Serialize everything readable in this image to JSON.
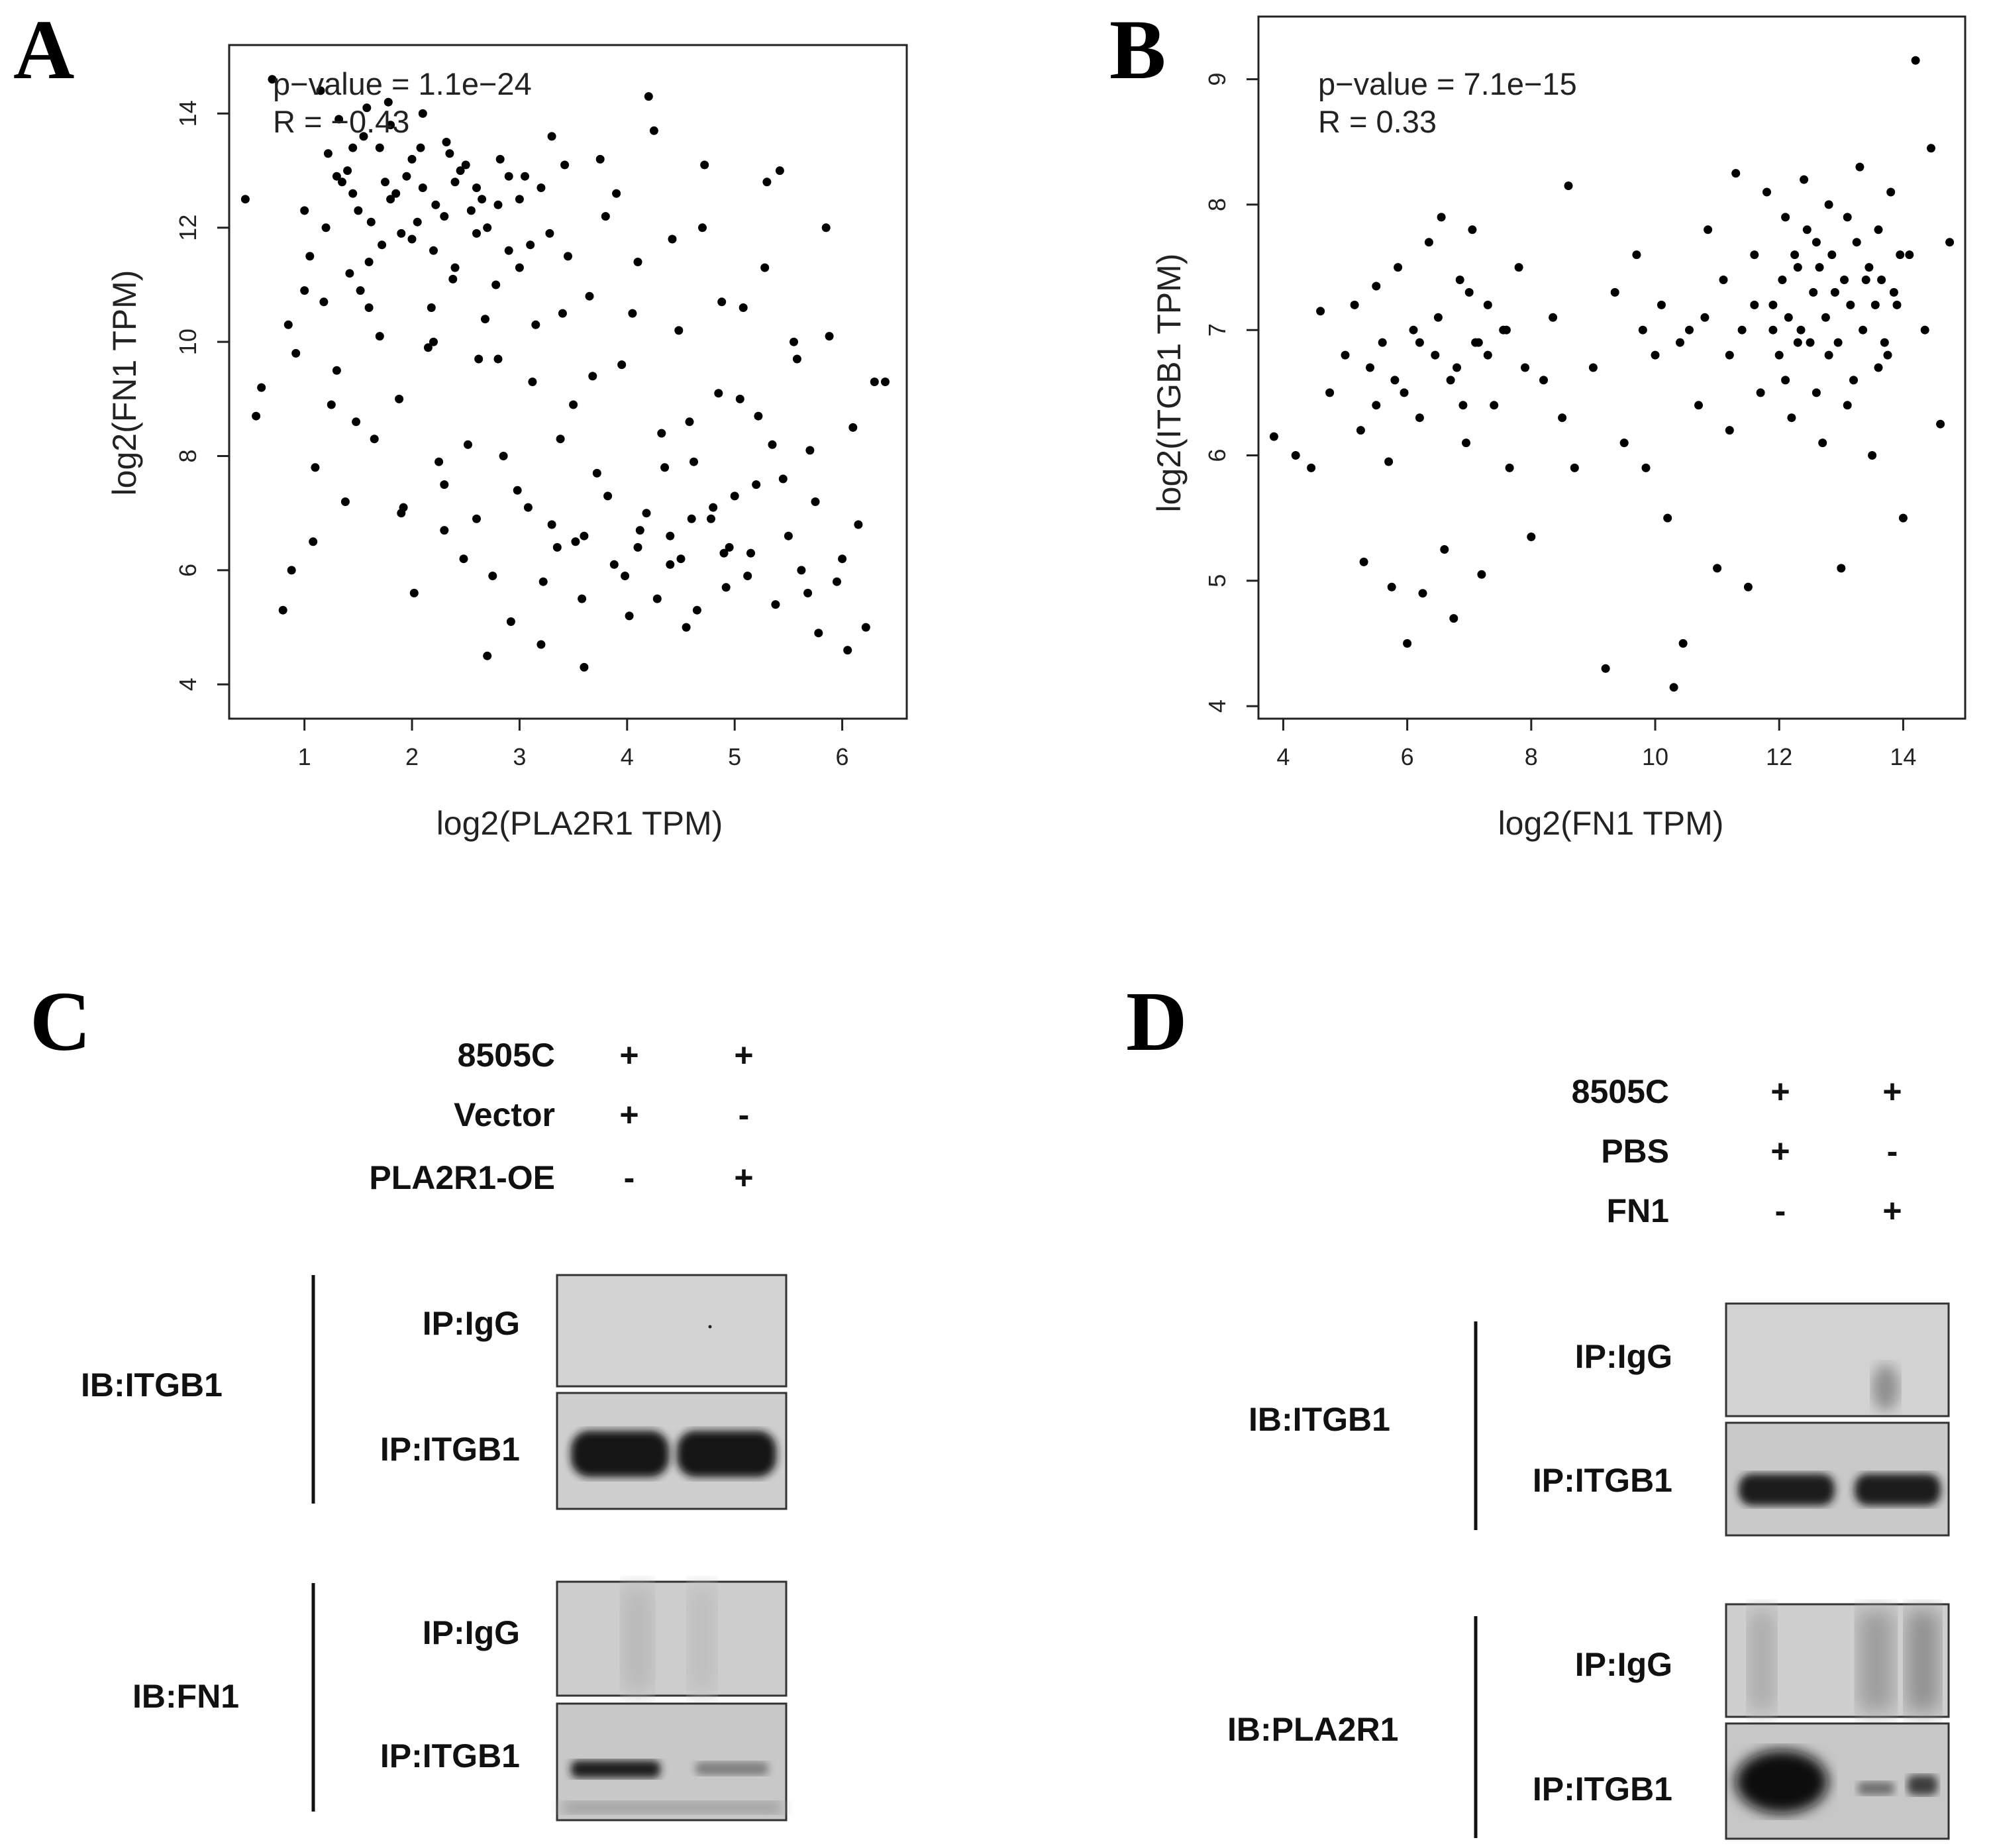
{
  "figure": {
    "panels": {
      "A": "A",
      "B": "B",
      "C": "C",
      "D": "D"
    }
  },
  "chart_data": [
    {
      "type": "scatter",
      "panel": "A",
      "stat_p": "p−value = 1.1e−24",
      "stat_r": "R = −0.43",
      "xlabel": "log2(PLA2R1 TPM)",
      "ylabel": "log2(FN1 TPM)",
      "xlim": [
        0.3,
        6.6
      ],
      "ylim": [
        3.4,
        15.2
      ],
      "xticks": [
        1,
        2,
        3,
        4,
        5,
        6
      ],
      "yticks": [
        4,
        6,
        8,
        10,
        12,
        14
      ],
      "points": [
        [
          0.85,
          10.3
        ],
        [
          0.92,
          9.8
        ],
        [
          1.0,
          12.3
        ],
        [
          1.05,
          11.5
        ],
        [
          1.1,
          7.8
        ],
        [
          1.18,
          10.7
        ],
        [
          1.22,
          13.3
        ],
        [
          1.3,
          9.5
        ],
        [
          1.35,
          12.8
        ],
        [
          1.42,
          11.2
        ],
        [
          1.48,
          8.6
        ],
        [
          1.55,
          13.6
        ],
        [
          1.62,
          12.1
        ],
        [
          1.7,
          10.1
        ],
        [
          1.78,
          14.2
        ],
        [
          1.85,
          12.6
        ],
        [
          1.92,
          7.1
        ],
        [
          2.0,
          11.8
        ],
        [
          2.08,
          13.4
        ],
        [
          2.15,
          9.9
        ],
        [
          2.22,
          12.4
        ],
        [
          2.3,
          6.7
        ],
        [
          2.38,
          11.1
        ],
        [
          2.45,
          13.0
        ],
        [
          2.52,
          8.2
        ],
        [
          2.6,
          12.7
        ],
        [
          2.68,
          10.4
        ],
        [
          2.75,
          5.9
        ],
        [
          2.82,
          13.2
        ],
        [
          2.9,
          11.6
        ],
        [
          2.98,
          7.4
        ],
        [
          3.05,
          12.9
        ],
        [
          3.12,
          9.3
        ],
        [
          3.2,
          4.7
        ],
        [
          3.28,
          11.9
        ],
        [
          3.35,
          6.4
        ],
        [
          3.42,
          13.1
        ],
        [
          3.5,
          8.9
        ],
        [
          3.58,
          5.5
        ],
        [
          3.65,
          10.8
        ],
        [
          3.72,
          7.7
        ],
        [
          3.8,
          12.2
        ],
        [
          3.88,
          6.1
        ],
        [
          3.95,
          9.6
        ],
        [
          4.02,
          5.2
        ],
        [
          4.1,
          11.4
        ],
        [
          4.18,
          7.0
        ],
        [
          4.25,
          13.7
        ],
        [
          4.32,
          8.4
        ],
        [
          4.4,
          6.6
        ],
        [
          4.48,
          10.2
        ],
        [
          4.55,
          5.0
        ],
        [
          4.62,
          7.9
        ],
        [
          4.7,
          12.0
        ],
        [
          4.78,
          6.9
        ],
        [
          4.85,
          9.1
        ],
        [
          4.92,
          5.7
        ],
        [
          5.0,
          7.3
        ],
        [
          5.08,
          10.6
        ],
        [
          5.15,
          6.3
        ],
        [
          5.22,
          8.7
        ],
        [
          5.3,
          12.8
        ],
        [
          5.38,
          5.4
        ],
        [
          5.45,
          7.6
        ],
        [
          5.55,
          10.0
        ],
        [
          5.62,
          6.0
        ],
        [
          5.7,
          8.1
        ],
        [
          5.78,
          4.9
        ],
        [
          5.85,
          12.0
        ],
        [
          5.95,
          5.8
        ],
        [
          6.05,
          4.6
        ],
        [
          6.15,
          6.8
        ],
        [
          6.3,
          9.3
        ],
        [
          0.45,
          12.5
        ],
        [
          0.55,
          8.7
        ],
        [
          0.6,
          9.2
        ],
        [
          0.7,
          14.6
        ],
        [
          0.8,
          5.3
        ],
        [
          0.88,
          6.0
        ],
        [
          1.08,
          6.5
        ],
        [
          1.15,
          14.4
        ],
        [
          1.25,
          8.9
        ],
        [
          1.32,
          13.9
        ],
        [
          1.38,
          7.2
        ],
        [
          1.45,
          12.6
        ],
        [
          1.52,
          10.9
        ],
        [
          1.58,
          14.1
        ],
        [
          1.65,
          8.3
        ],
        [
          1.72,
          11.7
        ],
        [
          1.8,
          13.8
        ],
        [
          1.88,
          9.0
        ],
        [
          1.95,
          12.9
        ],
        [
          2.02,
          5.6
        ],
        [
          2.1,
          14.0
        ],
        [
          2.18,
          10.6
        ],
        [
          2.25,
          7.9
        ],
        [
          2.32,
          13.5
        ],
        [
          2.4,
          11.3
        ],
        [
          2.48,
          6.2
        ],
        [
          2.55,
          12.3
        ],
        [
          2.62,
          9.7
        ],
        [
          2.7,
          4.5
        ],
        [
          2.78,
          11.0
        ],
        [
          2.85,
          8.0
        ],
        [
          2.92,
          5.1
        ],
        [
          3.0,
          12.5
        ],
        [
          3.08,
          7.1
        ],
        [
          3.15,
          10.3
        ],
        [
          3.22,
          5.8
        ],
        [
          3.3,
          13.6
        ],
        [
          3.38,
          8.3
        ],
        [
          3.45,
          11.5
        ],
        [
          3.52,
          6.5
        ],
        [
          3.6,
          4.3
        ],
        [
          3.68,
          9.4
        ],
        [
          3.75,
          13.2
        ],
        [
          3.82,
          7.3
        ],
        [
          3.9,
          12.6
        ],
        [
          3.98,
          5.9
        ],
        [
          4.05,
          10.5
        ],
        [
          4.12,
          6.7
        ],
        [
          4.2,
          14.3
        ],
        [
          4.28,
          5.5
        ],
        [
          4.35,
          7.8
        ],
        [
          4.42,
          11.8
        ],
        [
          4.5,
          6.2
        ],
        [
          4.58,
          8.6
        ],
        [
          4.65,
          5.3
        ],
        [
          4.72,
          13.1
        ],
        [
          4.8,
          7.1
        ],
        [
          4.88,
          10.7
        ],
        [
          4.95,
          6.4
        ],
        [
          5.05,
          9.0
        ],
        [
          5.12,
          5.9
        ],
        [
          5.2,
          7.5
        ],
        [
          5.28,
          11.3
        ],
        [
          5.35,
          8.2
        ],
        [
          5.42,
          13.0
        ],
        [
          5.5,
          6.6
        ],
        [
          5.58,
          9.7
        ],
        [
          5.68,
          5.6
        ],
        [
          5.75,
          7.2
        ],
        [
          5.88,
          10.1
        ],
        [
          6.0,
          6.2
        ],
        [
          6.1,
          8.5
        ],
        [
          6.22,
          5.0
        ],
        [
          6.4,
          9.3
        ],
        [
          1.0,
          10.9
        ],
        [
          1.2,
          12.0
        ],
        [
          1.4,
          13.0
        ],
        [
          1.6,
          11.4
        ],
        [
          1.8,
          12.5
        ],
        [
          2.0,
          13.2
        ],
        [
          2.2,
          11.6
        ],
        [
          2.4,
          12.8
        ],
        [
          2.6,
          11.9
        ],
        [
          2.8,
          12.4
        ],
        [
          3.0,
          11.3
        ],
        [
          3.2,
          12.7
        ],
        [
          3.4,
          10.5
        ],
        [
          1.3,
          12.9
        ],
        [
          1.5,
          12.3
        ],
        [
          1.7,
          13.4
        ],
        [
          1.9,
          11.9
        ],
        [
          2.1,
          12.7
        ],
        [
          2.3,
          12.2
        ],
        [
          2.5,
          13.1
        ],
        [
          2.7,
          12.0
        ],
        [
          2.9,
          12.9
        ],
        [
          3.1,
          11.7
        ],
        [
          1.45,
          13.4
        ],
        [
          1.75,
          12.8
        ],
        [
          2.05,
          12.1
        ],
        [
          2.35,
          13.3
        ],
        [
          2.65,
          12.5
        ],
        [
          1.6,
          10.6
        ],
        [
          2.2,
          10.0
        ],
        [
          2.8,
          9.7
        ],
        [
          1.9,
          7.0
        ],
        [
          2.3,
          7.5
        ],
        [
          2.6,
          6.9
        ],
        [
          3.3,
          6.8
        ],
        [
          3.6,
          6.6
        ],
        [
          4.1,
          6.4
        ],
        [
          4.4,
          6.1
        ],
        [
          4.6,
          6.9
        ],
        [
          4.9,
          6.3
        ]
      ]
    },
    {
      "type": "scatter",
      "panel": "B",
      "stat_p": "p−value = 7.1e−15",
      "stat_r": "R = 0.33",
      "xlabel": "log2(FN1 TPM)",
      "ylabel": "log2(ITGB1 TPM)",
      "xlim": [
        3.6,
        15.0
      ],
      "ylim": [
        3.9,
        9.5
      ],
      "xticks": [
        4,
        6,
        8,
        10,
        12,
        14
      ],
      "yticks": [
        4,
        5,
        6,
        7,
        8,
        9
      ],
      "points": [
        [
          3.85,
          6.15
        ],
        [
          4.2,
          6.0
        ],
        [
          4.45,
          5.9
        ],
        [
          4.6,
          7.15
        ],
        [
          4.75,
          6.5
        ],
        [
          5.0,
          6.8
        ],
        [
          5.15,
          7.2
        ],
        [
          5.25,
          6.2
        ],
        [
          5.3,
          5.15
        ],
        [
          5.4,
          6.7
        ],
        [
          5.5,
          7.35
        ],
        [
          5.6,
          6.9
        ],
        [
          5.7,
          5.95
        ],
        [
          5.75,
          4.95
        ],
        [
          5.85,
          7.5
        ],
        [
          5.95,
          6.5
        ],
        [
          6.0,
          4.5
        ],
        [
          6.1,
          7.0
        ],
        [
          6.2,
          6.3
        ],
        [
          6.25,
          4.9
        ],
        [
          6.35,
          7.7
        ],
        [
          6.45,
          6.8
        ],
        [
          6.55,
          7.9
        ],
        [
          6.6,
          5.25
        ],
        [
          6.7,
          6.6
        ],
        [
          6.75,
          4.7
        ],
        [
          6.85,
          7.4
        ],
        [
          6.95,
          6.1
        ],
        [
          7.05,
          7.8
        ],
        [
          7.15,
          6.9
        ],
        [
          7.2,
          5.05
        ],
        [
          7.3,
          7.2
        ],
        [
          7.4,
          6.4
        ],
        [
          7.55,
          7.0
        ],
        [
          7.65,
          5.9
        ],
        [
          7.8,
          7.5
        ],
        [
          7.9,
          6.7
        ],
        [
          8.0,
          5.35
        ],
        [
          8.2,
          6.6
        ],
        [
          8.35,
          7.1
        ],
        [
          8.5,
          6.3
        ],
        [
          8.6,
          8.15
        ],
        [
          8.7,
          5.9
        ],
        [
          9.0,
          6.7
        ],
        [
          9.2,
          4.3
        ],
        [
          9.35,
          7.3
        ],
        [
          9.5,
          6.1
        ],
        [
          9.7,
          7.6
        ],
        [
          9.85,
          5.9
        ],
        [
          10.0,
          6.8
        ],
        [
          10.1,
          7.2
        ],
        [
          10.2,
          5.5
        ],
        [
          10.3,
          4.15
        ],
        [
          10.45,
          4.5
        ],
        [
          10.55,
          7.0
        ],
        [
          10.7,
          6.4
        ],
        [
          10.85,
          7.8
        ],
        [
          11.0,
          5.1
        ],
        [
          11.1,
          7.4
        ],
        [
          11.2,
          6.2
        ],
        [
          11.3,
          8.25
        ],
        [
          11.4,
          7.0
        ],
        [
          11.5,
          4.95
        ],
        [
          11.6,
          7.6
        ],
        [
          11.7,
          6.5
        ],
        [
          11.8,
          8.1
        ],
        [
          11.9,
          7.2
        ],
        [
          12.0,
          6.8
        ],
        [
          12.1,
          7.9
        ],
        [
          12.2,
          6.3
        ],
        [
          12.3,
          7.5
        ],
        [
          12.4,
          8.2
        ],
        [
          12.5,
          6.9
        ],
        [
          12.6,
          7.7
        ],
        [
          12.7,
          6.1
        ],
        [
          12.8,
          8.0
        ],
        [
          12.9,
          7.3
        ],
        [
          13.0,
          5.1
        ],
        [
          13.1,
          7.9
        ],
        [
          13.2,
          6.6
        ],
        [
          13.3,
          8.3
        ],
        [
          13.4,
          7.4
        ],
        [
          13.5,
          6.0
        ],
        [
          13.6,
          7.8
        ],
        [
          13.7,
          6.9
        ],
        [
          13.8,
          8.1
        ],
        [
          13.9,
          7.2
        ],
        [
          14.0,
          5.5
        ],
        [
          14.1,
          7.6
        ],
        [
          14.2,
          9.15
        ],
        [
          14.35,
          7.0
        ],
        [
          14.45,
          8.45
        ],
        [
          14.6,
          6.25
        ],
        [
          14.75,
          7.7
        ],
        [
          12.05,
          7.4
        ],
        [
          12.15,
          7.1
        ],
        [
          12.25,
          7.6
        ],
        [
          12.35,
          7.0
        ],
        [
          12.45,
          7.8
        ],
        [
          12.55,
          7.3
        ],
        [
          12.65,
          7.5
        ],
        [
          12.75,
          7.1
        ],
        [
          12.85,
          7.6
        ],
        [
          12.95,
          6.9
        ],
        [
          13.05,
          7.4
        ],
        [
          13.15,
          7.2
        ],
        [
          13.25,
          7.7
        ],
        [
          13.35,
          7.0
        ],
        [
          13.45,
          7.5
        ],
        [
          13.55,
          7.2
        ],
        [
          13.65,
          7.4
        ],
        [
          13.75,
          6.8
        ],
        [
          13.85,
          7.3
        ],
        [
          13.95,
          7.6
        ],
        [
          12.1,
          6.6
        ],
        [
          12.6,
          6.5
        ],
        [
          13.1,
          6.4
        ],
        [
          13.6,
          6.7
        ],
        [
          11.6,
          7.2
        ],
        [
          11.9,
          7.0
        ],
        [
          12.3,
          6.9
        ],
        [
          12.8,
          6.8
        ],
        [
          11.2,
          6.8
        ],
        [
          10.8,
          7.1
        ],
        [
          10.4,
          6.9
        ],
        [
          9.8,
          7.0
        ],
        [
          6.2,
          6.9
        ],
        [
          6.5,
          7.1
        ],
        [
          6.8,
          6.7
        ],
        [
          7.0,
          7.3
        ],
        [
          7.3,
          6.8
        ],
        [
          7.6,
          7.0
        ],
        [
          5.8,
          6.6
        ],
        [
          6.9,
          6.4
        ],
        [
          7.1,
          6.9
        ],
        [
          5.5,
          6.4
        ]
      ]
    }
  ],
  "panel_c": {
    "conditions": [
      {
        "label": "8505C",
        "lane1": "+",
        "lane2": "+"
      },
      {
        "label": "Vector",
        "lane1": "+",
        "lane2": "-"
      },
      {
        "label": "PLA2R1-OE",
        "lane1": "-",
        "lane2": "+"
      }
    ],
    "blots": [
      {
        "ib": "IB:ITGB1",
        "rows": [
          "IP:IgG",
          "IP:ITGB1"
        ]
      },
      {
        "ib": "IB:FN1",
        "rows": [
          "IP:IgG",
          "IP:ITGB1"
        ]
      }
    ]
  },
  "panel_d": {
    "conditions": [
      {
        "label": "8505C",
        "lane1": "+",
        "lane2": "+"
      },
      {
        "label": "PBS",
        "lane1": "+",
        "lane2": "-"
      },
      {
        "label": "FN1",
        "lane1": "-",
        "lane2": "+"
      }
    ],
    "blots": [
      {
        "ib": "IB:ITGB1",
        "rows": [
          "IP:IgG",
          "IP:ITGB1"
        ]
      },
      {
        "ib": "IB:PLA2R1",
        "rows": [
          "IP:IgG",
          "IP:ITGB1"
        ]
      }
    ]
  }
}
